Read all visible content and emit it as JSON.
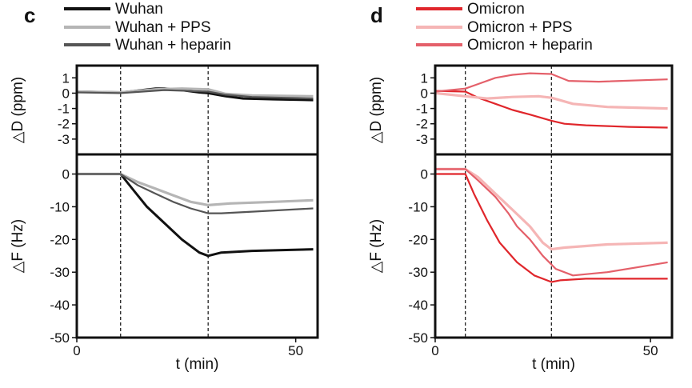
{
  "chart_data": [
    {
      "panel": "c",
      "type": "line",
      "xlabel": "t (min)",
      "xlim": [
        0,
        55
      ],
      "xticks": [
        0,
        50
      ],
      "markers": [
        10,
        30
      ],
      "legend": [
        "Wuhan",
        "Wuhan + PPS",
        "Wuhan + heparin"
      ],
      "colors": [
        "#111111",
        "#b5b5b5",
        "#555555"
      ],
      "top": {
        "ylabel": "△D (ppm)",
        "ylim": [
          -4,
          1.8
        ],
        "yticks": [
          1,
          0,
          -1,
          -2,
          -3
        ],
        "series": [
          {
            "name": "Wuhan",
            "x": [
              0,
              10,
              12,
              15,
              18,
              20,
              24,
              28,
              30,
              34,
              38,
              45,
              54
            ],
            "y": [
              0.1,
              0.05,
              0.1,
              0.2,
              0.3,
              0.3,
              0.2,
              0.05,
              0.0,
              -0.2,
              -0.35,
              -0.4,
              -0.45
            ]
          },
          {
            "name": "Wuhan + PPS",
            "x": [
              0,
              10,
              14,
              18,
              24,
              30,
              34,
              40,
              54
            ],
            "y": [
              0.1,
              0.05,
              0.15,
              0.25,
              0.3,
              0.25,
              -0.05,
              -0.15,
              -0.2
            ]
          },
          {
            "name": "Wuhan + heparin",
            "x": [
              0,
              10,
              15,
              20,
              30,
              34,
              40,
              54
            ],
            "y": [
              0.05,
              0.0,
              0.1,
              0.2,
              0.1,
              -0.1,
              -0.25,
              -0.35
            ]
          }
        ]
      },
      "bottom": {
        "ylabel": "△F (Hz)",
        "ylim": [
          -50,
          6
        ],
        "yticks": [
          0,
          -10,
          -20,
          -30,
          -40,
          -50
        ],
        "series": [
          {
            "name": "Wuhan",
            "x": [
              0,
              10,
              13,
              16,
              20,
              24,
              28,
              30,
              33,
              40,
              54
            ],
            "y": [
              0,
              0,
              -5,
              -10,
              -15,
              -20,
              -24,
              -25,
              -24,
              -23.5,
              -23
            ]
          },
          {
            "name": "Wuhan + PPS",
            "x": [
              0,
              10,
              14,
              18,
              22,
              26,
              30,
              35,
              45,
              54
            ],
            "y": [
              0,
              0,
              -2.5,
              -4.5,
              -6.5,
              -8.5,
              -9.5,
              -9,
              -8.5,
              -8
            ]
          },
          {
            "name": "Wuhan + heparin",
            "x": [
              0,
              10,
              14,
              18,
              22,
              26,
              30,
              33,
              40,
              54
            ],
            "y": [
              0,
              0,
              -3.5,
              -6,
              -8.5,
              -10.5,
              -12,
              -12,
              -11.5,
              -10.5
            ]
          }
        ]
      }
    },
    {
      "panel": "d",
      "type": "line",
      "xlabel": "t (min)",
      "xlim": [
        0,
        55
      ],
      "xticks": [
        0,
        50
      ],
      "markers": [
        7,
        27
      ],
      "legend": [
        "Omicron",
        "Omicron + PPS",
        "Omicron + heparin"
      ],
      "colors": [
        "#e0262b",
        "#f5b5b5",
        "#e4606a"
      ],
      "top": {
        "ylabel": "△D (ppm)",
        "ylim": [
          -4,
          1.8
        ],
        "yticks": [
          1,
          0,
          -1,
          -2,
          -3
        ],
        "series": [
          {
            "name": "Omicron",
            "x": [
              0,
              7,
              10,
              14,
              18,
              22,
              27,
              30,
              35,
              45,
              54
            ],
            "y": [
              0.15,
              0.1,
              -0.3,
              -0.7,
              -1.1,
              -1.4,
              -1.8,
              -2.0,
              -2.1,
              -2.2,
              -2.25
            ]
          },
          {
            "name": "Omicron + PPS",
            "x": [
              0,
              7,
              12,
              18,
              24,
              27,
              32,
              40,
              54
            ],
            "y": [
              0.0,
              -0.2,
              -0.35,
              -0.25,
              -0.2,
              -0.3,
              -0.7,
              -0.9,
              -1.0
            ]
          },
          {
            "name": "Omicron + heparin",
            "x": [
              0,
              7,
              10,
              14,
              18,
              22,
              27,
              31,
              38,
              54
            ],
            "y": [
              0.1,
              0.3,
              0.6,
              1.0,
              1.2,
              1.3,
              1.25,
              0.8,
              0.75,
              0.9
            ]
          }
        ]
      },
      "bottom": {
        "ylabel": "△F (Hz)",
        "ylim": [
          -50,
          6
        ],
        "yticks": [
          0,
          -10,
          -20,
          -30,
          -40,
          -50
        ],
        "series": [
          {
            "name": "Omicron",
            "x": [
              0,
              7,
              9,
              12,
              15,
              19,
              23,
              27,
              29,
              35,
              54
            ],
            "y": [
              0,
              0,
              -6,
              -14,
              -21,
              -27,
              -31,
              -33,
              -32.5,
              -32,
              -32
            ]
          },
          {
            "name": "Omicron + PPS",
            "x": [
              0,
              7,
              10,
              14,
              18,
              22,
              25,
              27,
              30,
              40,
              54
            ],
            "y": [
              1.5,
              1.5,
              -1,
              -6,
              -11,
              -16,
              -21,
              -23,
              -22.5,
              -21.5,
              -21
            ]
          },
          {
            "name": "Omicron + heparin",
            "x": [
              0,
              7,
              10,
              14,
              17,
              19,
              22,
              25,
              28,
              32,
              40,
              54
            ],
            "y": [
              1.5,
              1.5,
              -2,
              -7,
              -12,
              -16,
              -20,
              -25,
              -29,
              -31,
              -30,
              -27
            ]
          }
        ]
      }
    }
  ]
}
